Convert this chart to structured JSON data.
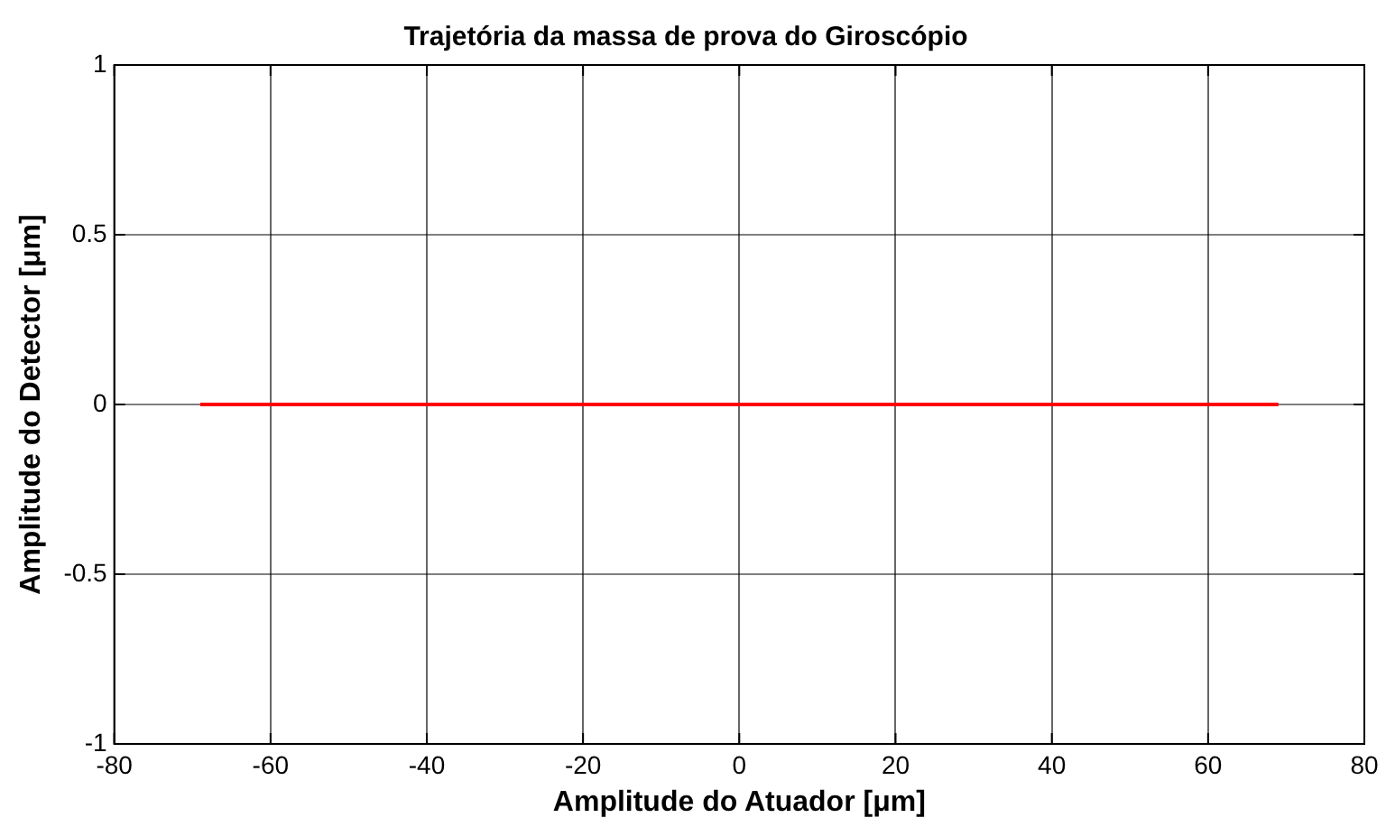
{
  "chart_data": {
    "type": "line",
    "title": "Trajetória da massa de prova do Giroscópio",
    "xlabel": "Amplitude do Atuador [μm]",
    "ylabel": "Amplitude do Detector [μm]",
    "x": [
      -69,
      69
    ],
    "series": [
      {
        "color": "#ff0000",
        "values": [
          0,
          0
        ]
      }
    ],
    "xlim": [
      -80,
      80
    ],
    "xticks": [
      -80,
      -60,
      -40,
      -20,
      0,
      20,
      40,
      60,
      80
    ],
    "ylim": [
      -1,
      1
    ],
    "yticks": [
      -1,
      -0.5,
      0,
      0.5,
      1
    ],
    "grid": true,
    "marker": "none",
    "line_style": "solid",
    "legend": false
  }
}
